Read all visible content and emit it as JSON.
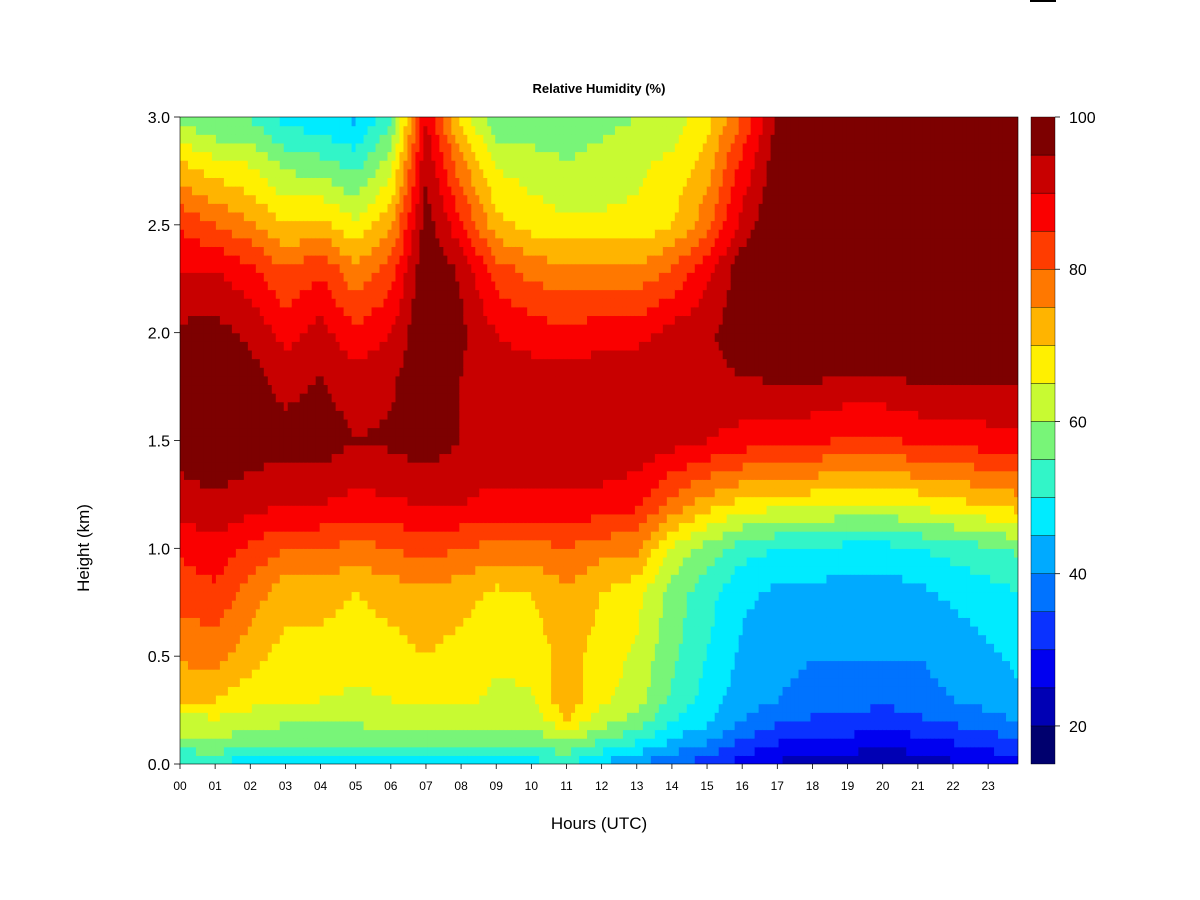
{
  "chart_data": {
    "type": "heatmap",
    "title": "Relative Humidity (%)",
    "xlabel": "Hours (UTC)",
    "ylabel": "Height (km)",
    "xlim": [
      0,
      23.85
    ],
    "ylim": [
      0.0,
      3.0
    ],
    "x_tick_labels": [
      "00",
      "01",
      "02",
      "03",
      "04",
      "05",
      "06",
      "07",
      "08",
      "09",
      "10",
      "11",
      "12",
      "13",
      "14",
      "15",
      "16",
      "17",
      "18",
      "19",
      "20",
      "21",
      "22",
      "23"
    ],
    "y_tick_labels": [
      "0.0",
      "0.5",
      "1.0",
      "1.5",
      "2.0",
      "2.5",
      "3.0"
    ],
    "y_ticks": [
      0.0,
      0.5,
      1.0,
      1.5,
      2.0,
      2.5,
      3.0
    ],
    "colorbar": {
      "min": 15,
      "max": 100,
      "tick_values": [
        20,
        40,
        60,
        80,
        100
      ],
      "tick_labels": [
        "20",
        "40",
        "60",
        "80",
        "100"
      ],
      "level_colors": [
        "#00006E",
        "#0000B4",
        "#0000F0",
        "#0A32FF",
        "#0073FF",
        "#00AAFF",
        "#00EBFF",
        "#32F5C8",
        "#78F578",
        "#C8FA32",
        "#FFF000",
        "#FFB400",
        "#FF7800",
        "#FF3C00",
        "#FA0000",
        "#C80000",
        "#7D0000"
      ]
    },
    "heights": [
      0.0,
      0.1,
      0.2,
      0.3,
      0.5,
      0.8,
      1.0,
      1.2,
      1.5,
      1.8,
      2.0,
      2.3,
      2.5,
      2.8,
      3.0
    ],
    "hours": [
      0,
      1,
      2,
      3,
      4,
      5,
      6,
      7,
      8,
      9,
      10,
      11,
      12,
      13,
      14,
      15,
      16,
      17,
      18,
      19,
      20,
      21,
      22,
      23,
      23.85
    ],
    "values_by_hour": [
      [
        48,
        58,
        63,
        70,
        76,
        82,
        86,
        92,
        98,
        98,
        96,
        90,
        84,
        70,
        58
      ],
      [
        50,
        60,
        64,
        70,
        77,
        84,
        88,
        94,
        99,
        99,
        97,
        90,
        80,
        66,
        54
      ],
      [
        46,
        56,
        62,
        67,
        72,
        78,
        84,
        92,
        98,
        97,
        94,
        86,
        76,
        64,
        54
      ],
      [
        46,
        55,
        61,
        65,
        68,
        72,
        80,
        90,
        97,
        93,
        88,
        80,
        70,
        58,
        48
      ],
      [
        46,
        55,
        61,
        65,
        68,
        72,
        80,
        90,
        98,
        95,
        92,
        84,
        72,
        56,
        46
      ],
      [
        46,
        55,
        61,
        64,
        67,
        70,
        78,
        88,
        95,
        92,
        86,
        76,
        66,
        52,
        44
      ],
      [
        46,
        55,
        62,
        65,
        68,
        72,
        80,
        89,
        96,
        94,
        90,
        82,
        74,
        62,
        54
      ],
      [
        48,
        56,
        62,
        66,
        70,
        74,
        82,
        90,
        98,
        99,
        100,
        100,
        98,
        94,
        90
      ],
      [
        48,
        56,
        62,
        66,
        68,
        72,
        80,
        90,
        95,
        95,
        96,
        94,
        86,
        76,
        68
      ],
      [
        48,
        56,
        61,
        64,
        66,
        69,
        78,
        88,
        94,
        92,
        90,
        82,
        72,
        64,
        56
      ],
      [
        48,
        56,
        61,
        64,
        67,
        70,
        78,
        88,
        94,
        92,
        88,
        78,
        68,
        62,
        56
      ],
      [
        50,
        60,
        70,
        74,
        72,
        74,
        80,
        88,
        94,
        92,
        86,
        76,
        66,
        60,
        56
      ],
      [
        44,
        54,
        62,
        66,
        68,
        70,
        77,
        88,
        94,
        93,
        88,
        76,
        66,
        62,
        58
      ],
      [
        40,
        50,
        58,
        62,
        64,
        67,
        76,
        86,
        94,
        94,
        88,
        76,
        66,
        64,
        60
      ],
      [
        36,
        44,
        50,
        54,
        56,
        58,
        64,
        78,
        92,
        94,
        92,
        80,
        70,
        66,
        62
      ],
      [
        32,
        40,
        46,
        48,
        50,
        52,
        58,
        72,
        90,
        94,
        94,
        88,
        78,
        72,
        68
      ],
      [
        28,
        34,
        40,
        42,
        44,
        46,
        52,
        68,
        88,
        95,
        98,
        98,
        92,
        86,
        80
      ],
      [
        24,
        30,
        36,
        40,
        42,
        44,
        50,
        66,
        86,
        96,
        99,
        100,
        100,
        98,
        96
      ],
      [
        22,
        28,
        34,
        38,
        40,
        44,
        50,
        66,
        86,
        96,
        100,
        100,
        100,
        100,
        98
      ],
      [
        22,
        28,
        34,
        38,
        40,
        42,
        48,
        64,
        84,
        95,
        99,
        100,
        100,
        99,
        97
      ],
      [
        20,
        26,
        32,
        36,
        40,
        42,
        48,
        64,
        84,
        95,
        99,
        100,
        100,
        99,
        96
      ],
      [
        22,
        28,
        34,
        38,
        40,
        44,
        50,
        66,
        86,
        96,
        99,
        100,
        100,
        98,
        96
      ],
      [
        24,
        30,
        36,
        40,
        42,
        46,
        52,
        68,
        86,
        96,
        99,
        100,
        100,
        98,
        96
      ],
      [
        26,
        32,
        38,
        42,
        44,
        48,
        54,
        70,
        88,
        96,
        99,
        100,
        100,
        98,
        96
      ],
      [
        28,
        34,
        40,
        44,
        46,
        50,
        56,
        72,
        88,
        96,
        99,
        100,
        100,
        98,
        96
      ]
    ]
  }
}
